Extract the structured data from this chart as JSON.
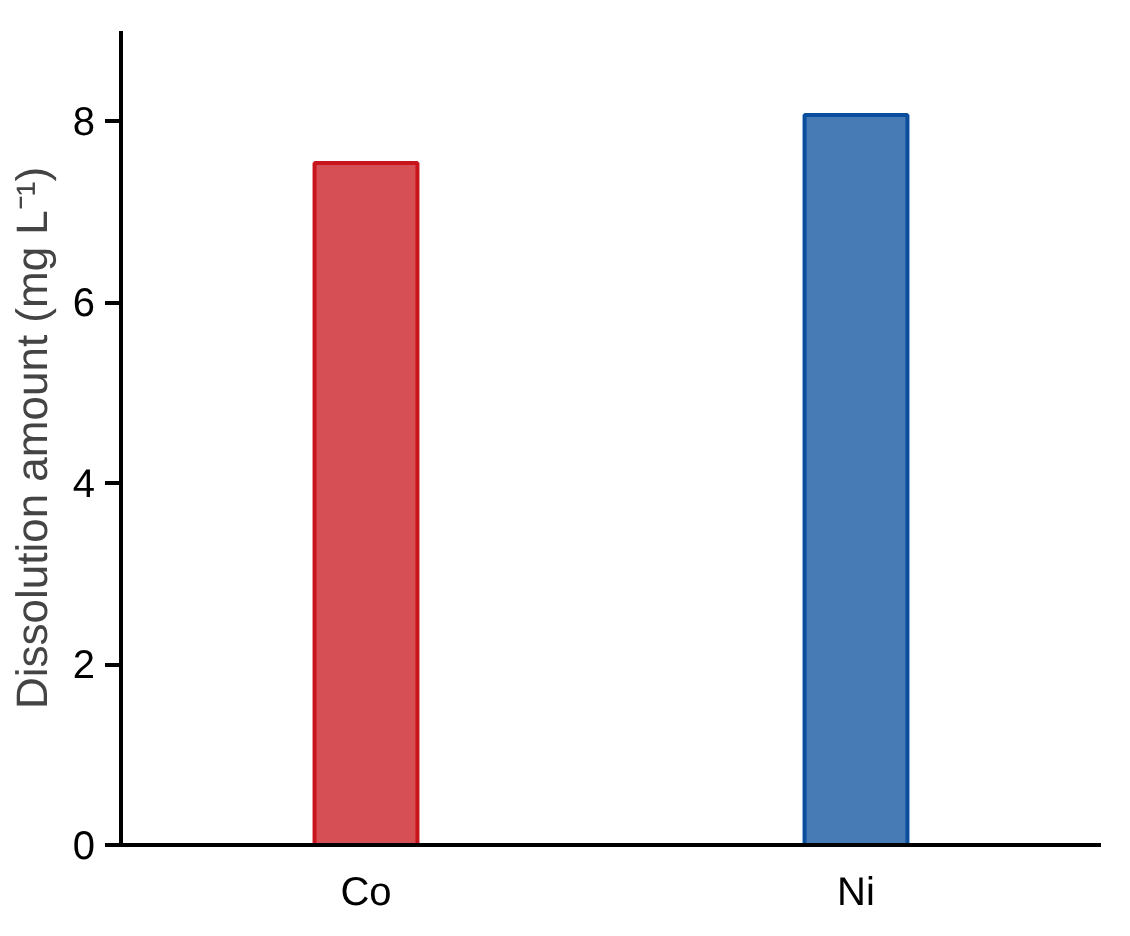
{
  "chart_data": {
    "type": "bar",
    "ylabel": "Dissolution amount (mg L⁻¹)",
    "categories": [
      "Co",
      "Ni"
    ],
    "values": [
      7.54,
      8.07
    ],
    "colors": [
      "#c8141b",
      "#0a4f9e"
    ],
    "ylim": [
      0,
      9
    ],
    "yticks": [
      0,
      2,
      4,
      6,
      8
    ],
    "grid": false
  }
}
